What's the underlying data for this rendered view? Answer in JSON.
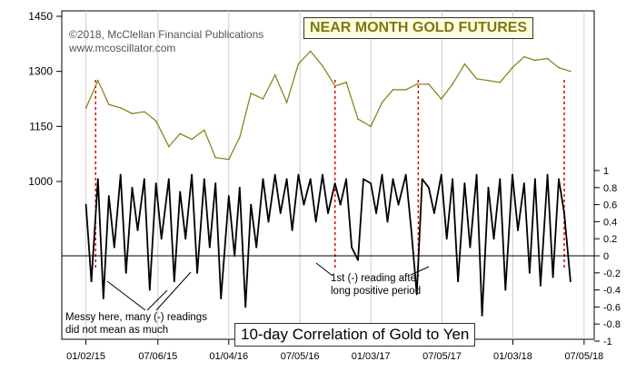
{
  "copyright": [
    "©2018, McClellan Financial Publications",
    "www.mcoscillator.com"
  ],
  "top_title": "NEAR MONTH GOLD FUTURES",
  "bottom_title": "10-day Correlation of Gold to Yen",
  "annotations": {
    "messy": [
      "Messy here, many (-) readings",
      "did not mean as much"
    ],
    "first_negative": [
      "1st (-) reading after",
      "long positive period"
    ]
  },
  "colors": {
    "gold_line": "#7f7f10",
    "correlation_line": "#000000",
    "marker_line": "#e00000",
    "title_box": "#fffde0"
  },
  "chart_data": [
    {
      "type": "line",
      "title": "NEAR MONTH GOLD FUTURES",
      "x": [
        "2015-01-02",
        "2015-02-02",
        "2015-03-02",
        "2015-04-02",
        "2015-05-01",
        "2015-06-01",
        "2015-07-01",
        "2015-08-03",
        "2015-09-01",
        "2015-10-01",
        "2015-11-02",
        "2015-12-01",
        "2016-01-04",
        "2016-02-01",
        "2016-03-01",
        "2016-04-01",
        "2016-05-02",
        "2016-06-01",
        "2016-07-01",
        "2016-08-01",
        "2016-09-01",
        "2016-10-03",
        "2016-11-01",
        "2016-12-01",
        "2017-01-03",
        "2017-02-01",
        "2017-03-01",
        "2017-04-03",
        "2017-05-01",
        "2017-06-01",
        "2017-07-03",
        "2017-08-01",
        "2017-09-01",
        "2017-10-02",
        "2017-11-01",
        "2017-12-01",
        "2018-01-02",
        "2018-02-01",
        "2018-03-01",
        "2018-04-02",
        "2018-05-01",
        "2018-05-31"
      ],
      "y": [
        1200,
        1275,
        1210,
        1200,
        1185,
        1190,
        1165,
        1095,
        1130,
        1115,
        1140,
        1065,
        1060,
        1120,
        1240,
        1225,
        1290,
        1215,
        1320,
        1355,
        1315,
        1260,
        1270,
        1170,
        1150,
        1215,
        1250,
        1250,
        1265,
        1265,
        1225,
        1265,
        1320,
        1280,
        1275,
        1270,
        1310,
        1340,
        1330,
        1335,
        1310,
        1300
      ],
      "ylim": [
        1000,
        1450
      ],
      "yticks": [
        1000,
        1150,
        1300,
        1450
      ],
      "xticks": [
        "01/02/15",
        "07/06/15",
        "01/04/16",
        "07/05/16",
        "01/03/17",
        "07/05/17",
        "01/03/18",
        "07/05/18"
      ],
      "series": [
        {
          "values_key": "y"
        }
      ]
    },
    {
      "type": "line",
      "title": "10-day Correlation of Gold to Yen",
      "x": [
        "2015-01-02",
        "2015-01-16",
        "2015-02-02",
        "2015-02-16",
        "2015-03-02",
        "2015-03-16",
        "2015-04-01",
        "2015-04-15",
        "2015-05-01",
        "2015-05-15",
        "2015-06-01",
        "2015-06-15",
        "2015-07-01",
        "2015-07-15",
        "2015-08-03",
        "2015-08-17",
        "2015-09-01",
        "2015-09-15",
        "2015-10-01",
        "2015-10-15",
        "2015-11-02",
        "2015-11-16",
        "2015-12-01",
        "2015-12-15",
        "2016-01-04",
        "2016-01-19",
        "2016-02-01",
        "2016-02-16",
        "2016-03-01",
        "2016-03-15",
        "2016-04-01",
        "2016-04-15",
        "2016-05-02",
        "2016-05-16",
        "2016-06-01",
        "2016-06-15",
        "2016-07-01",
        "2016-07-15",
        "2016-08-01",
        "2016-08-15",
        "2016-09-01",
        "2016-09-15",
        "2016-10-03",
        "2016-10-17",
        "2016-11-01",
        "2016-11-15",
        "2016-12-01",
        "2016-12-15",
        "2017-01-03",
        "2017-01-17",
        "2017-02-01",
        "2017-02-15",
        "2017-03-01",
        "2017-03-15",
        "2017-04-03",
        "2017-04-17",
        "2017-05-01",
        "2017-05-15",
        "2017-06-01",
        "2017-06-15",
        "2017-07-03",
        "2017-07-17",
        "2017-08-01",
        "2017-08-15",
        "2017-09-01",
        "2017-09-15",
        "2017-10-02",
        "2017-10-16",
        "2017-11-01",
        "2017-11-15",
        "2017-12-01",
        "2017-12-15",
        "2018-01-02",
        "2018-01-16",
        "2018-02-01",
        "2018-02-15",
        "2018-03-01",
        "2018-03-15",
        "2018-04-02",
        "2018-04-16",
        "2018-05-01",
        "2018-05-15",
        "2018-05-31"
      ],
      "y": [
        0.6,
        -0.3,
        0.9,
        -0.5,
        0.7,
        0.1,
        0.95,
        -0.2,
        0.8,
        0.3,
        0.9,
        -0.4,
        0.85,
        0.2,
        0.9,
        -0.3,
        0.75,
        0.2,
        0.95,
        -0.2,
        0.9,
        0.1,
        0.85,
        -0.5,
        0.7,
        0.0,
        0.8,
        -0.6,
        0.6,
        0.1,
        0.9,
        0.4,
        0.95,
        0.5,
        0.9,
        0.3,
        0.95,
        0.6,
        0.9,
        0.4,
        0.95,
        0.5,
        0.85,
        0.6,
        0.9,
        0.1,
        -0.05,
        0.9,
        0.85,
        0.5,
        0.95,
        0.4,
        0.9,
        0.6,
        0.95,
        0.3,
        -0.45,
        0.9,
        0.8,
        0.5,
        0.95,
        0.2,
        0.9,
        -0.3,
        0.85,
        0.1,
        0.95,
        -0.7,
        0.8,
        0.2,
        0.9,
        -0.4,
        0.95,
        0.3,
        0.85,
        -0.2,
        0.9,
        -0.35,
        0.95,
        -0.25,
        0.9,
        0.5,
        -0.3
      ],
      "ylim": [
        -1,
        1
      ],
      "yticks": [
        1,
        0.8,
        0.6,
        0.4,
        0.2,
        0,
        -0.2,
        -0.4,
        -0.6,
        -0.8,
        -1
      ],
      "zero_line": true
    }
  ],
  "marker_dates": [
    "2015-01-27",
    "2016-10-03",
    "2017-05-05",
    "2018-05-15"
  ]
}
